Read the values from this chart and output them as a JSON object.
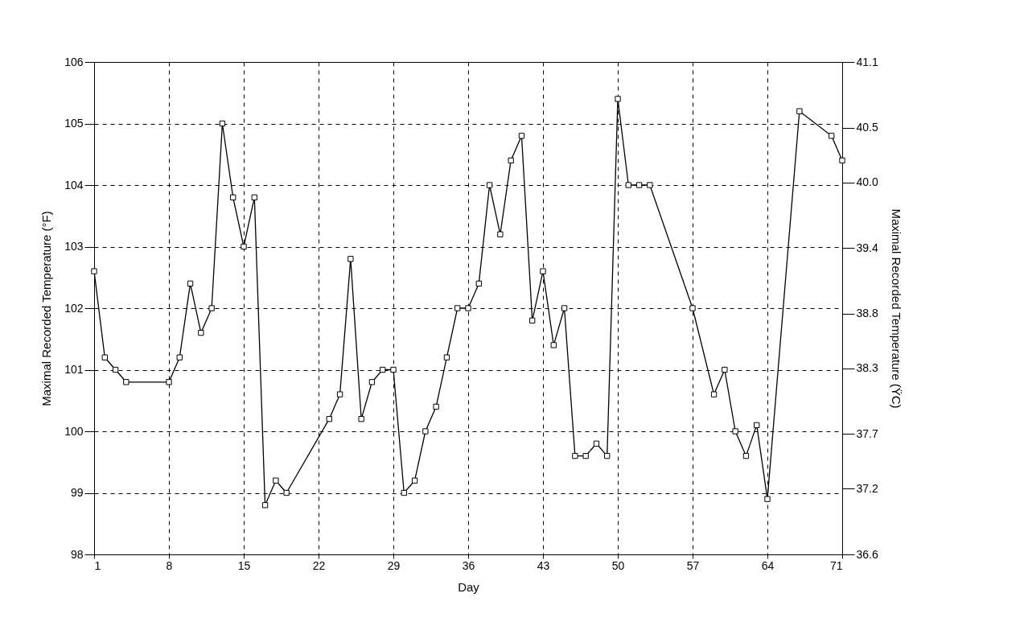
{
  "chart_data": {
    "type": "line",
    "xlabel": "Day",
    "ylabel": "Maximal Recorded Temperature (°F)",
    "y2label": "Maximal Recorded Temperature (ŸC)",
    "x": [
      1,
      2,
      3,
      4,
      8,
      9,
      10,
      11,
      12,
      13,
      14,
      15,
      16,
      17,
      18,
      19,
      23,
      24,
      25,
      26,
      27,
      28,
      29,
      30,
      31,
      32,
      33,
      34,
      35,
      36,
      37,
      38,
      39,
      40,
      41,
      42,
      43,
      44,
      45,
      46,
      47,
      48,
      49,
      50,
      51,
      52,
      53,
      57,
      59,
      60,
      61,
      62,
      63,
      64,
      67,
      70,
      71
    ],
    "series": [
      {
        "color": "#000000",
        "values": [
          102.6,
          101.2,
          101.0,
          100.8,
          100.8,
          101.2,
          102.4,
          101.6,
          102.0,
          105.0,
          103.8,
          103.0,
          103.8,
          98.8,
          99.2,
          99.0,
          100.2,
          100.6,
          102.8,
          100.2,
          100.8,
          101.0,
          101.0,
          99.0,
          99.2,
          100.0,
          100.4,
          101.2,
          102.0,
          102.0,
          102.4,
          104.0,
          103.2,
          104.4,
          104.8,
          101.8,
          102.6,
          101.4,
          102.0,
          99.6,
          99.6,
          99.8,
          99.6,
          105.4,
          104.0,
          104.0,
          104.0,
          102.0,
          100.6,
          101.0,
          100.0,
          99.6,
          100.1,
          98.9,
          105.2,
          104.8,
          104.4
        ]
      }
    ],
    "xlim": [
      1,
      71
    ],
    "xticks": [
      1,
      8,
      15,
      22,
      29,
      36,
      43,
      50,
      57,
      64,
      71
    ],
    "ylim": [
      98,
      106
    ],
    "yticks": [
      98,
      99,
      100,
      101,
      102,
      103,
      104,
      105,
      106
    ],
    "y2lim": [
      36.6,
      41.1
    ],
    "y2ticks": [
      36.6,
      37.2,
      37.7,
      38.3,
      38.8,
      39.4,
      {
        "value": 40,
        "label": "40.0"
      },
      40.5,
      41.1
    ],
    "grid": true,
    "marker": "square",
    "line_style": "solid"
  }
}
